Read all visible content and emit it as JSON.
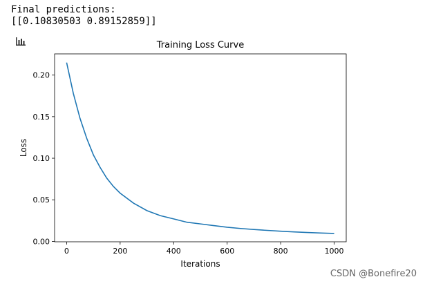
{
  "output": {
    "line1": "Final predictions:",
    "line2": "[[0.10830503 0.89152859]]"
  },
  "icon": "bar-chart-icon",
  "watermark": "CSDN @Bonefire20",
  "chart_data": {
    "type": "line",
    "title": "Training Loss Curve",
    "xlabel": "Iterations",
    "ylabel": "Loss",
    "xlim": [
      -45,
      1045
    ],
    "ylim": [
      -0.0005,
      0.2255
    ],
    "xticks": [
      0,
      200,
      400,
      600,
      800,
      1000
    ],
    "xtick_labels": [
      "0",
      "200",
      "400",
      "600",
      "800",
      "1000"
    ],
    "yticks": [
      0.0,
      0.05,
      0.1,
      0.15,
      0.2
    ],
    "ytick_labels": [
      "0.00",
      "0.05",
      "0.10",
      "0.15",
      "0.20"
    ],
    "grid": false,
    "line_color": "#1f77b4",
    "series": [
      {
        "x": [
          0,
          25,
          50,
          75,
          100,
          125,
          150,
          175,
          200,
          250,
          300,
          350,
          400,
          450,
          500,
          550,
          600,
          650,
          700,
          750,
          800,
          850,
          900,
          950,
          1000
        ],
        "y": [
          0.215,
          0.178,
          0.148,
          0.124,
          0.104,
          0.089,
          0.076,
          0.066,
          0.058,
          0.046,
          0.037,
          0.031,
          0.027,
          0.023,
          0.021,
          0.019,
          0.017,
          0.0155,
          0.0143,
          0.0132,
          0.0122,
          0.0114,
          0.0107,
          0.01,
          0.0095
        ]
      }
    ]
  }
}
